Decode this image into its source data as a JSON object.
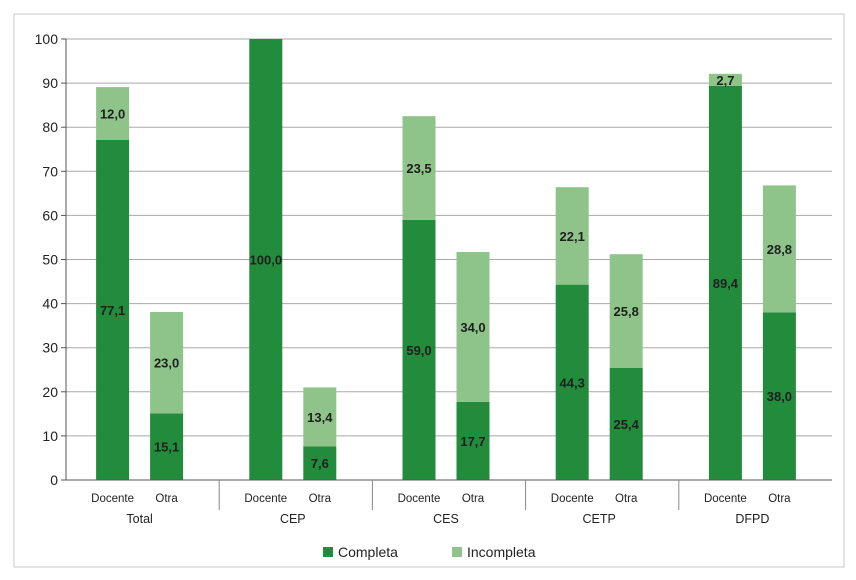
{
  "chart_data": {
    "type": "bar",
    "stacked": true,
    "groups": [
      "Total",
      "CEP",
      "CES",
      "CETP",
      "DFPD"
    ],
    "subcategories": [
      "Docente",
      "Otra"
    ],
    "series": [
      {
        "name": "Completa",
        "color": "#228b3c",
        "values": [
          77.1,
          15.1,
          100.0,
          7.6,
          59.0,
          17.7,
          44.3,
          25.4,
          89.4,
          38.0
        ],
        "labels": [
          "77,1",
          "15,1",
          "100,0",
          "7,6",
          "59,0",
          "17,7",
          "44,3",
          "25,4",
          "89,4",
          "38,0"
        ]
      },
      {
        "name": "Incompleta",
        "color": "#8ec48a",
        "values": [
          12.0,
          23.0,
          0,
          13.4,
          23.5,
          34.0,
          22.1,
          25.8,
          2.7,
          28.8
        ],
        "labels": [
          "12,0",
          "23,0",
          "",
          "13,4",
          "23,5",
          "34,0",
          "22,1",
          "25,8",
          "2,7",
          "28,8"
        ]
      }
    ],
    "yticks": [
      "0",
      "10",
      "20",
      "30",
      "40",
      "50",
      "60",
      "70",
      "80",
      "90",
      "100"
    ],
    "ylim": [
      0,
      100
    ],
    "grid": true,
    "legend_position": "bottom"
  }
}
